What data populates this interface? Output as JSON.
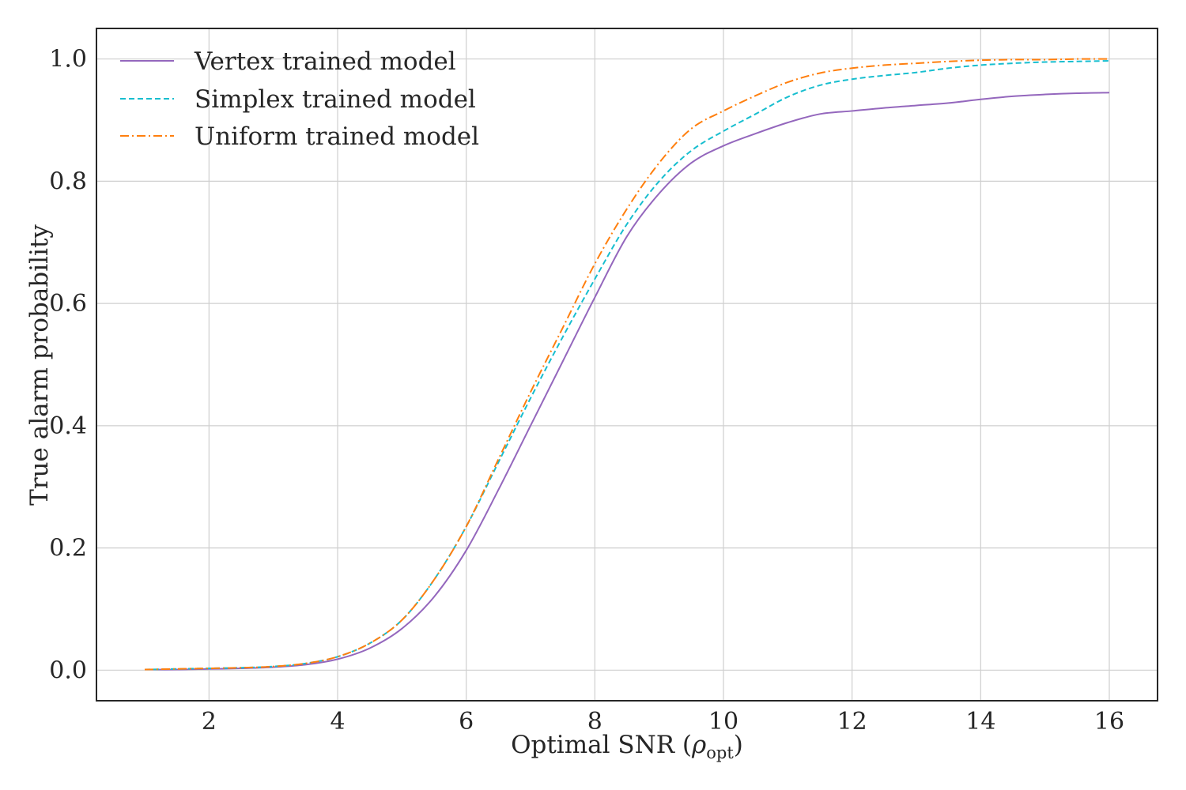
{
  "chart_data": {
    "type": "line",
    "title": "",
    "xlabel_main": "Optimal SNR (",
    "xlabel_symbol": "ρ",
    "xlabel_sub": "opt",
    "xlabel_close": ")",
    "ylabel": "True alarm probability",
    "xlim": [
      0.25,
      16.75
    ],
    "ylim": [
      -0.05,
      1.05
    ],
    "xticks": [
      2,
      4,
      6,
      8,
      10,
      12,
      14,
      16
    ],
    "yticks": [
      0.0,
      0.2,
      0.4,
      0.6,
      0.8,
      1.0
    ],
    "ytick_labels": [
      "0.0",
      "0.2",
      "0.4",
      "0.6",
      "0.8",
      "1.0"
    ],
    "grid": true,
    "legend_position": "top-left",
    "x": [
      1,
      1.5,
      2,
      2.5,
      3,
      3.5,
      4,
      4.5,
      5,
      5.5,
      6,
      6.5,
      7,
      7.5,
      8,
      8.5,
      9,
      9.5,
      10,
      10.5,
      11,
      11.5,
      12,
      12.5,
      13,
      13.5,
      14,
      14.5,
      15,
      15.5,
      16
    ],
    "series": [
      {
        "name": "Vertex trained model",
        "color": "#9467bd",
        "dash": "solid",
        "values": [
          0.001,
          0.001,
          0.002,
          0.003,
          0.005,
          0.009,
          0.018,
          0.036,
          0.068,
          0.12,
          0.196,
          0.295,
          0.4,
          0.505,
          0.61,
          0.71,
          0.78,
          0.83,
          0.858,
          0.878,
          0.896,
          0.91,
          0.915,
          0.92,
          0.924,
          0.928,
          0.934,
          0.939,
          0.942,
          0.944,
          0.945
        ]
      },
      {
        "name": "Simplex trained model",
        "color": "#17becf",
        "dash": "dashed",
        "values": [
          0.001,
          0.002,
          0.003,
          0.004,
          0.006,
          0.011,
          0.022,
          0.044,
          0.082,
          0.148,
          0.235,
          0.34,
          0.445,
          0.545,
          0.64,
          0.73,
          0.8,
          0.85,
          0.882,
          0.91,
          0.938,
          0.957,
          0.967,
          0.973,
          0.978,
          0.985,
          0.99,
          0.993,
          0.995,
          0.996,
          0.997
        ]
      },
      {
        "name": "Uniform trained model",
        "color": "#ff7f0e",
        "dash": "dashdot",
        "values": [
          0.001,
          0.002,
          0.003,
          0.004,
          0.006,
          0.011,
          0.022,
          0.044,
          0.082,
          0.148,
          0.235,
          0.345,
          0.455,
          0.56,
          0.665,
          0.755,
          0.83,
          0.886,
          0.915,
          0.94,
          0.962,
          0.977,
          0.985,
          0.99,
          0.993,
          0.996,
          0.998,
          0.999,
          0.999,
          1.0,
          1.0
        ]
      }
    ]
  }
}
